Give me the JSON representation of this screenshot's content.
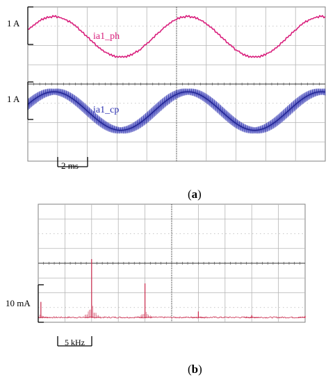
{
  "panel_a": {
    "caption_paren_open": "(",
    "caption_letter": "a",
    "caption_paren_close": ")",
    "scale_label_top": "1 A",
    "scale_label_bottom": "1 A",
    "time_scale_label": "2 ms"
  },
  "panel_b": {
    "caption_paren_open": "(",
    "caption_letter": "b",
    "caption_paren_close": ")",
    "scale_label": "10 mA",
    "freq_scale_label": "5 kHz"
  },
  "chart_data": [
    {
      "type": "line",
      "title": "",
      "xlabel": "",
      "ylabel": "",
      "x_divisions": 10,
      "y_divisions": 8,
      "time_per_division": "2 ms",
      "grid": true,
      "series": [
        {
          "name": "ia1_ph",
          "color": "#d81b7a",
          "amplitude_divisions": 1.05,
          "period_divisions": 4.5,
          "ripple": "small step ripple"
        },
        {
          "name": "ia1_cp",
          "color": "#2a2fb0",
          "amplitude_divisions": 1.0,
          "period_divisions": 4.5,
          "ripple": "high-frequency switching ripple band"
        }
      ],
      "series_colors": [
        "#d81b7a",
        "#2a2fb0"
      ]
    },
    {
      "type": "bar",
      "title": "",
      "xlabel": "",
      "ylabel": "",
      "x_divisions": 10,
      "y_divisions": 8,
      "frequency_per_division": "5 kHz",
      "grid": true,
      "spectrum_color": "#c8284a",
      "components": [
        {
          "freq_div": 0.1,
          "magnitude_div": 1.1
        },
        {
          "freq_div": 2.0,
          "magnitude_div": 4.0
        },
        {
          "freq_div": 4.0,
          "magnitude_div": 2.35
        },
        {
          "freq_div": 6.0,
          "magnitude_div": 0.45
        },
        {
          "freq_div": 8.0,
          "magnitude_div": 0.2
        },
        {
          "freq_div": 10.0,
          "magnitude_div": 0.15
        }
      ]
    }
  ]
}
